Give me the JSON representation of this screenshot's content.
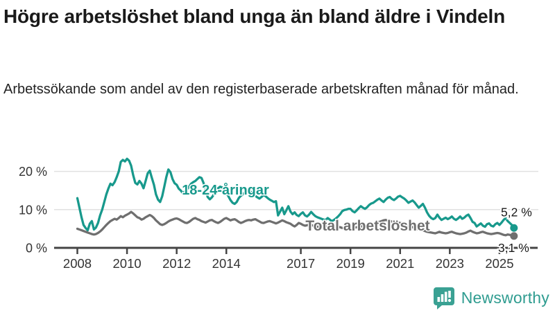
{
  "header": {
    "title": "Högre arbetslöshet bland unga än bland äldre i Vindeln",
    "subtitle": "Arbetssökande som andel av den registerbaserade arbetskraften månad för månad."
  },
  "chart_data": {
    "type": "line",
    "x_unit": "monthly",
    "x_start_year": 2008,
    "points_per_year": 12,
    "x_ticks": [
      2008,
      2010,
      2012,
      2014,
      2017,
      2019,
      2021,
      2023,
      2025
    ],
    "y_ticks": [
      0,
      10,
      20
    ],
    "y_tick_suffix": " %",
    "ylim": [
      0,
      25
    ],
    "grid": true,
    "legend_position": "inline-labels",
    "series": [
      {
        "name": "18-24-åringar",
        "color": "#18998c",
        "end_label": "5,2 %",
        "end_value": 5.2,
        "values": [
          13.0,
          10.5,
          8.0,
          6.0,
          5.2,
          4.6,
          6.3,
          7.0,
          4.8,
          5.3,
          6.5,
          8.5,
          10.0,
          12.0,
          14.0,
          15.5,
          16.8,
          16.4,
          17.2,
          18.5,
          20.0,
          22.5,
          23.0,
          22.6,
          23.3,
          22.8,
          21.5,
          19.0,
          17.0,
          16.6,
          17.5,
          16.8,
          15.6,
          17.5,
          19.5,
          20.2,
          18.3,
          16.5,
          14.0,
          12.6,
          12.0,
          13.5,
          16.0,
          18.5,
          20.5,
          19.8,
          18.0,
          16.9,
          16.5,
          15.5,
          15.0,
          14.3,
          14.8,
          15.3,
          16.0,
          16.8,
          17.2,
          17.5,
          18.0,
          18.5,
          18.3,
          17.0,
          15.0,
          13.3,
          12.7,
          13.2,
          14.0,
          15.0,
          15.6,
          16.0,
          15.8,
          15.3,
          14.5,
          13.5,
          12.5,
          11.8,
          11.5,
          12.0,
          13.0,
          13.6,
          14.0,
          14.5,
          14.8,
          15.0,
          14.6,
          14.0,
          13.6,
          13.2,
          12.9,
          13.3,
          13.8,
          13.5,
          13.0,
          12.6,
          12.3,
          12.0,
          12.2,
          8.5,
          9.5,
          10.5,
          8.8,
          9.8,
          10.9,
          9.5,
          8.8,
          9.3,
          8.6,
          8.3,
          8.9,
          9.3,
          8.5,
          8.2,
          8.7,
          9.4,
          8.8,
          8.3,
          8.0,
          7.8,
          7.6,
          7.4,
          7.3,
          7.8,
          7.4,
          7.0,
          7.3,
          7.7,
          8.2,
          8.8,
          9.6,
          9.9,
          10.0,
          10.2,
          10.2,
          9.6,
          9.3,
          9.8,
          10.4,
          10.9,
          10.5,
          10.2,
          10.6,
          11.2,
          11.6,
          11.8,
          12.2,
          12.6,
          12.9,
          12.4,
          12.0,
          12.6,
          13.1,
          13.3,
          12.8,
          12.5,
          12.9,
          13.4,
          13.6,
          13.2,
          12.9,
          12.4,
          11.8,
          12.1,
          12.4,
          11.9,
          11.2,
          10.5,
          11.0,
          11.5,
          10.5,
          9.3,
          8.4,
          7.8,
          7.5,
          7.8,
          8.7,
          7.9,
          7.3,
          7.6,
          7.9,
          7.5,
          7.8,
          8.2,
          7.6,
          7.3,
          7.7,
          8.2,
          7.6,
          7.9,
          8.4,
          8.7,
          7.8,
          6.8,
          6.5,
          5.6,
          6.0,
          6.4,
          5.8,
          5.5,
          6.2,
          6.4,
          5.8,
          5.6,
          6.2,
          6.5,
          6.0,
          6.6,
          7.3,
          7.8,
          7.0,
          6.5,
          6.0,
          5.2
        ]
      },
      {
        "name": "Total arbetslöshet",
        "color": "#6f6f6f",
        "end_label": "3,1 %",
        "end_value": 3.1,
        "values": [
          5.0,
          4.8,
          4.6,
          4.4,
          4.2,
          4.0,
          3.8,
          3.6,
          3.5,
          3.6,
          3.9,
          4.3,
          4.8,
          5.4,
          6.0,
          6.5,
          7.0,
          7.3,
          7.6,
          7.4,
          7.8,
          8.3,
          8.0,
          8.4,
          8.7,
          9.0,
          9.4,
          9.0,
          8.5,
          8.0,
          7.8,
          7.4,
          7.6,
          8.0,
          8.3,
          8.6,
          8.3,
          7.8,
          7.2,
          6.7,
          6.2,
          6.0,
          6.2,
          6.5,
          6.9,
          7.2,
          7.4,
          7.6,
          7.7,
          7.5,
          7.2,
          6.9,
          6.6,
          6.5,
          6.8,
          7.2,
          7.6,
          7.8,
          7.5,
          7.3,
          7.0,
          6.8,
          6.6,
          6.9,
          7.2,
          7.3,
          7.0,
          6.7,
          6.5,
          6.8,
          7.2,
          7.6,
          7.8,
          7.5,
          7.2,
          7.4,
          7.5,
          7.2,
          6.8,
          6.5,
          6.7,
          7.0,
          7.2,
          7.3,
          7.2,
          7.4,
          7.5,
          7.2,
          6.9,
          6.6,
          6.5,
          6.7,
          6.9,
          7.0,
          6.8,
          6.6,
          6.4,
          6.6,
          6.9,
          7.2,
          7.0,
          6.7,
          6.5,
          6.3,
          5.9,
          5.6,
          6.0,
          6.5,
          6.3,
          6.0,
          5.8,
          5.9,
          6.1,
          6.0,
          5.8,
          5.6,
          5.5,
          5.6,
          5.8,
          5.9,
          5.8,
          5.6,
          5.4,
          5.3,
          5.2,
          5.3,
          5.5,
          5.4,
          5.2,
          5.1,
          5.2,
          5.4,
          5.5,
          5.4,
          5.3,
          5.4,
          5.5,
          5.6,
          5.7,
          5.6,
          5.5,
          5.7,
          5.9,
          6.1,
          6.3,
          6.5,
          6.8,
          7.0,
          7.2,
          7.3,
          7.2,
          7.0,
          6.9,
          6.8,
          6.7,
          6.6,
          6.5,
          6.4,
          6.2,
          6.0,
          5.8,
          5.6,
          5.4,
          5.2,
          5.0,
          4.8,
          4.7,
          4.6,
          4.4,
          4.2,
          4.1,
          4.0,
          3.9,
          3.8,
          4.0,
          4.2,
          4.0,
          3.9,
          3.8,
          3.9,
          4.1,
          4.2,
          4.0,
          3.8,
          3.7,
          3.6,
          3.7,
          3.8,
          4.0,
          4.3,
          4.5,
          4.2,
          4.0,
          3.8,
          3.9,
          4.1,
          4.2,
          4.0,
          3.8,
          3.7,
          3.6,
          3.7,
          3.8,
          3.9,
          3.8,
          3.6,
          3.4,
          3.3,
          3.5,
          3.4,
          3.2,
          3.1
        ]
      }
    ],
    "colors": {
      "grid": "#e0e0e0",
      "axis": "#444444",
      "tick_text": "#333333",
      "annotation_text": "#1a1a1a"
    }
  },
  "branding": {
    "name": "Newsworthy",
    "color": "#2f9c90",
    "icon": "bar-chart-speech-bubble"
  }
}
